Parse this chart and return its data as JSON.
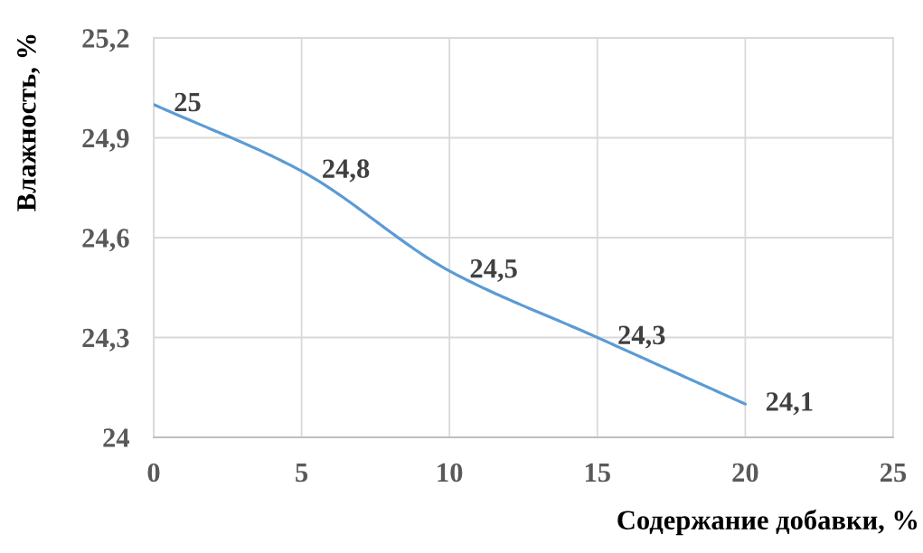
{
  "chart_data": {
    "type": "line",
    "xlabel": "Содержание добавки, %",
    "ylabel": "Влажность, %",
    "x": [
      0,
      5,
      10,
      15,
      20
    ],
    "series": [
      {
        "color": "#5b9bd5",
        "values": [
          25,
          24.8,
          24.5,
          24.3,
          24.1
        ],
        "value_labels": [
          "25",
          "24,8",
          "24,5",
          "24,3",
          "24,1"
        ]
      }
    ],
    "xlim": [
      0,
      25
    ],
    "ylim": [
      24,
      25.2
    ],
    "xticks": [
      0,
      5,
      10,
      15,
      20,
      25
    ],
    "yticks": [
      24,
      {
        "value": 24.3,
        "label": "24,3"
      },
      {
        "value": 24.6,
        "label": "24,6"
      },
      {
        "value": 24.9,
        "label": "24,9"
      },
      {
        "value": 25.2,
        "label": "25,2"
      }
    ],
    "grid": true
  }
}
